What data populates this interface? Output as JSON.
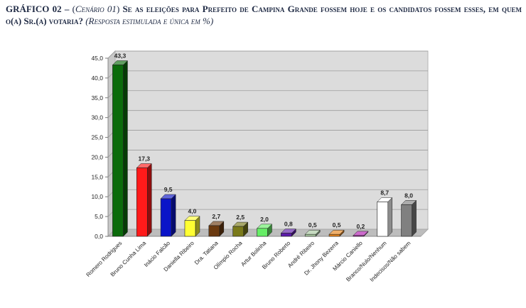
{
  "title": {
    "lead": "GRÁFICO 02 –",
    "open_paren": "(",
    "scenario": "Cenário 01",
    "close_paren": ")",
    "question": "Se as eleições para Prefeito de Campina Grande fossem hoje e os candidatos fossem esses, em quem o(a) Sr.(a) votaria?",
    "note": "(Resposta estimulada e única em %)"
  },
  "chart_data": {
    "type": "bar",
    "title": "",
    "xlabel": "",
    "ylabel": "",
    "ylim": [
      0,
      45
    ],
    "yticks": [
      "0,0",
      "5,0",
      "10,0",
      "15,0",
      "20,0",
      "25,0",
      "30,0",
      "35,0",
      "40,0",
      "45,0"
    ],
    "grid": true,
    "categories": [
      "Romero Rodrigues",
      "Bruno Cunha Lima",
      "Inácio Falcão",
      "Daniella Ribeiro",
      "Dra. Tatiana",
      "Olímpio Rocha",
      "Artur Bolinha",
      "Bruno Roberto",
      "André Ribeiro",
      "Dr. Jhony Bezerra",
      "Márcio Caniello",
      "Branco/Nulo/Nenhum",
      "Indecisos/Não sabem"
    ],
    "values": [
      43.3,
      17.3,
      9.5,
      4.0,
      2.7,
      2.5,
      2.0,
      0.8,
      0.5,
      0.5,
      0.2,
      8.7,
      8.0
    ],
    "value_labels": [
      "43,3",
      "17,3",
      "9,5",
      "4,0",
      "2,7",
      "2,5",
      "2,0",
      "0,8",
      "0,5",
      "0,5",
      "0,2",
      "8,7",
      "8,0"
    ],
    "colors": [
      "#0b6b0b",
      "#ff1a1a",
      "#0a14c8",
      "#ffff33",
      "#6b3a10",
      "#7a7a1a",
      "#66ee66",
      "#5a1aa8",
      "#a8c8a0",
      "#e8841a",
      "#b01ab0",
      "#ffffff",
      "#808080"
    ]
  }
}
